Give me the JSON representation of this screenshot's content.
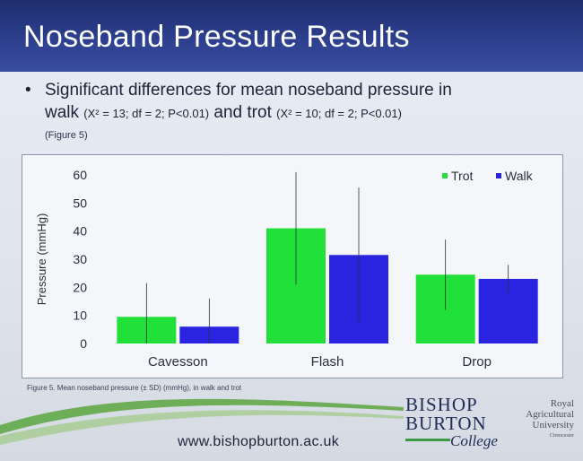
{
  "slide": {
    "title": "Noseband Pressure Results",
    "bullet": {
      "line1": "Significant differences for mean noseband pressure in",
      "line2_prefix": "walk ",
      "walk_stats": "(X² = 13; df = 2; P<0.01)",
      "line2_mid": " and trot ",
      "trot_stats": "(X² = 10; df = 2; P<0.01)",
      "figure_ref": "(Figure 5)"
    },
    "caption": "Figure 5. Mean noseband pressure (± SD) (mmHg), in walk and trot",
    "url": "www.bishopburton.ac.uk",
    "logo_bb": {
      "line1": "BISHOP",
      "line2": "BURTON",
      "line3": "College"
    },
    "logo_rau": {
      "line1": "Royal",
      "line2": "Agricultural",
      "line3": "University",
      "line4": "Cirencester"
    }
  },
  "chart_data": {
    "type": "bar",
    "categories": [
      "Cavesson",
      "Flash",
      "Drop"
    ],
    "series": [
      {
        "name": "Trot",
        "color": "#22e03a",
        "values": [
          9.5,
          41,
          24.5
        ],
        "error": [
          12,
          20,
          12.5
        ]
      },
      {
        "name": "Walk",
        "color": "#2a24e0",
        "values": [
          6,
          31.5,
          23
        ],
        "error": [
          10,
          24,
          5
        ]
      }
    ],
    "ylabel": "Pressure (mmHg)",
    "ylim": [
      0,
      60
    ],
    "yticks": [
      0,
      10,
      20,
      30,
      40,
      50,
      60
    ],
    "legend": "top-right",
    "grid": false
  }
}
